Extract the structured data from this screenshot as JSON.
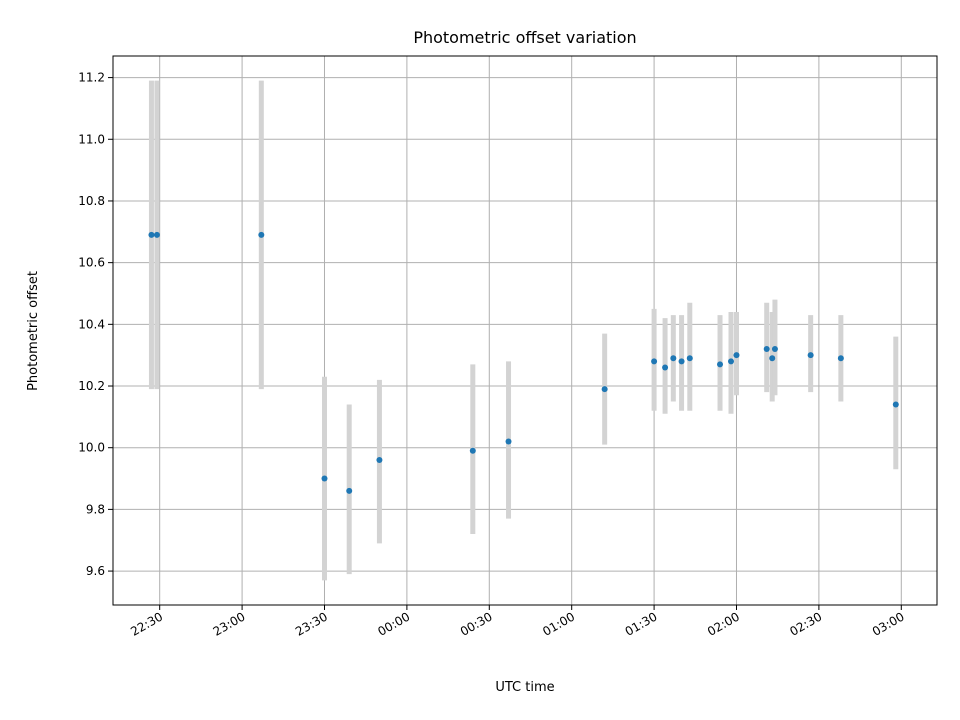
{
  "chart_data": {
    "type": "scatter",
    "title": "Photometric offset variation",
    "xlabel": "UTC time",
    "ylabel": "Photometric offset",
    "grid": true,
    "xlim_minutes_from_22_00": [
      13,
      313
    ],
    "ylim": [
      9.49,
      11.27
    ],
    "x_ticks": [
      "22:30",
      "23:00",
      "23:30",
      "00:00",
      "00:30",
      "01:00",
      "01:30",
      "02:00",
      "02:30",
      "03:00"
    ],
    "y_ticks": [
      "9.6",
      "9.8",
      "10.0",
      "10.2",
      "10.4",
      "10.6",
      "10.8",
      "11.0",
      "11.2"
    ],
    "marker_color": "#1f77b4",
    "errorbar_color": "#d3d3d3",
    "points": [
      {
        "time": "22:27",
        "y": 10.69,
        "ylow": 10.19,
        "yhigh": 11.19
      },
      {
        "time": "22:29",
        "y": 10.69,
        "ylow": 10.19,
        "yhigh": 11.19
      },
      {
        "time": "23:07",
        "y": 10.69,
        "ylow": 10.19,
        "yhigh": 11.19
      },
      {
        "time": "23:30",
        "y": 9.9,
        "ylow": 9.57,
        "yhigh": 10.23
      },
      {
        "time": "23:39",
        "y": 9.86,
        "ylow": 9.59,
        "yhigh": 10.14
      },
      {
        "time": "23:50",
        "y": 9.96,
        "ylow": 9.69,
        "yhigh": 10.22
      },
      {
        "time": "00:24",
        "y": 9.99,
        "ylow": 9.72,
        "yhigh": 10.27
      },
      {
        "time": "00:37",
        "y": 10.02,
        "ylow": 9.77,
        "yhigh": 10.28
      },
      {
        "time": "01:12",
        "y": 10.19,
        "ylow": 10.01,
        "yhigh": 10.37
      },
      {
        "time": "01:30",
        "y": 10.28,
        "ylow": 10.12,
        "yhigh": 10.45
      },
      {
        "time": "01:34",
        "y": 10.26,
        "ylow": 10.11,
        "yhigh": 10.42
      },
      {
        "time": "01:37",
        "y": 10.29,
        "ylow": 10.15,
        "yhigh": 10.43
      },
      {
        "time": "01:40",
        "y": 10.28,
        "ylow": 10.12,
        "yhigh": 10.43
      },
      {
        "time": "01:43",
        "y": 10.29,
        "ylow": 10.12,
        "yhigh": 10.47
      },
      {
        "time": "01:54",
        "y": 10.27,
        "ylow": 10.12,
        "yhigh": 10.43
      },
      {
        "time": "01:58",
        "y": 10.28,
        "ylow": 10.11,
        "yhigh": 10.44
      },
      {
        "time": "02:00",
        "y": 10.3,
        "ylow": 10.17,
        "yhigh": 10.44
      },
      {
        "time": "02:11",
        "y": 10.32,
        "ylow": 10.18,
        "yhigh": 10.47
      },
      {
        "time": "02:13",
        "y": 10.29,
        "ylow": 10.15,
        "yhigh": 10.44
      },
      {
        "time": "02:14",
        "y": 10.32,
        "ylow": 10.17,
        "yhigh": 10.48
      },
      {
        "time": "02:27",
        "y": 10.3,
        "ylow": 10.18,
        "yhigh": 10.43
      },
      {
        "time": "02:38",
        "y": 10.29,
        "ylow": 10.15,
        "yhigh": 10.43
      },
      {
        "time": "02:58",
        "y": 10.14,
        "ylow": 9.93,
        "yhigh": 10.36
      }
    ]
  }
}
